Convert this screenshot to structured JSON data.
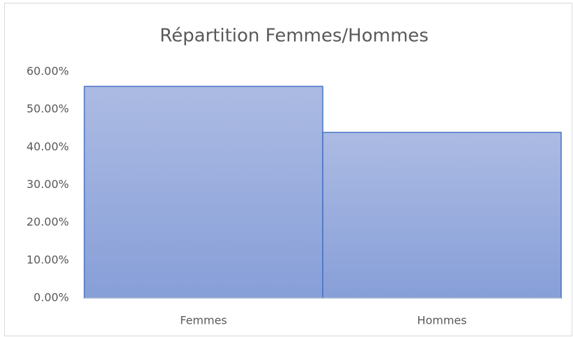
{
  "chart_data": {
    "type": "bar",
    "title": "Répartition Femmes/Hommes",
    "categories": [
      "Femmes",
      "Hommes"
    ],
    "values": [
      56.1,
      43.9
    ],
    "color": "#4472c4",
    "ylim": [
      0,
      60
    ],
    "yticks": [
      {
        "value": 0,
        "label": "0.00%"
      },
      {
        "value": 10,
        "label": "10.00%"
      },
      {
        "value": 20,
        "label": "20.00%"
      },
      {
        "value": 30,
        "label": "30.00%"
      },
      {
        "value": 40,
        "label": "40.00%"
      },
      {
        "value": 50,
        "label": "50.00%"
      },
      {
        "value": 60,
        "label": "60.00%"
      }
    ],
    "grid": false
  }
}
